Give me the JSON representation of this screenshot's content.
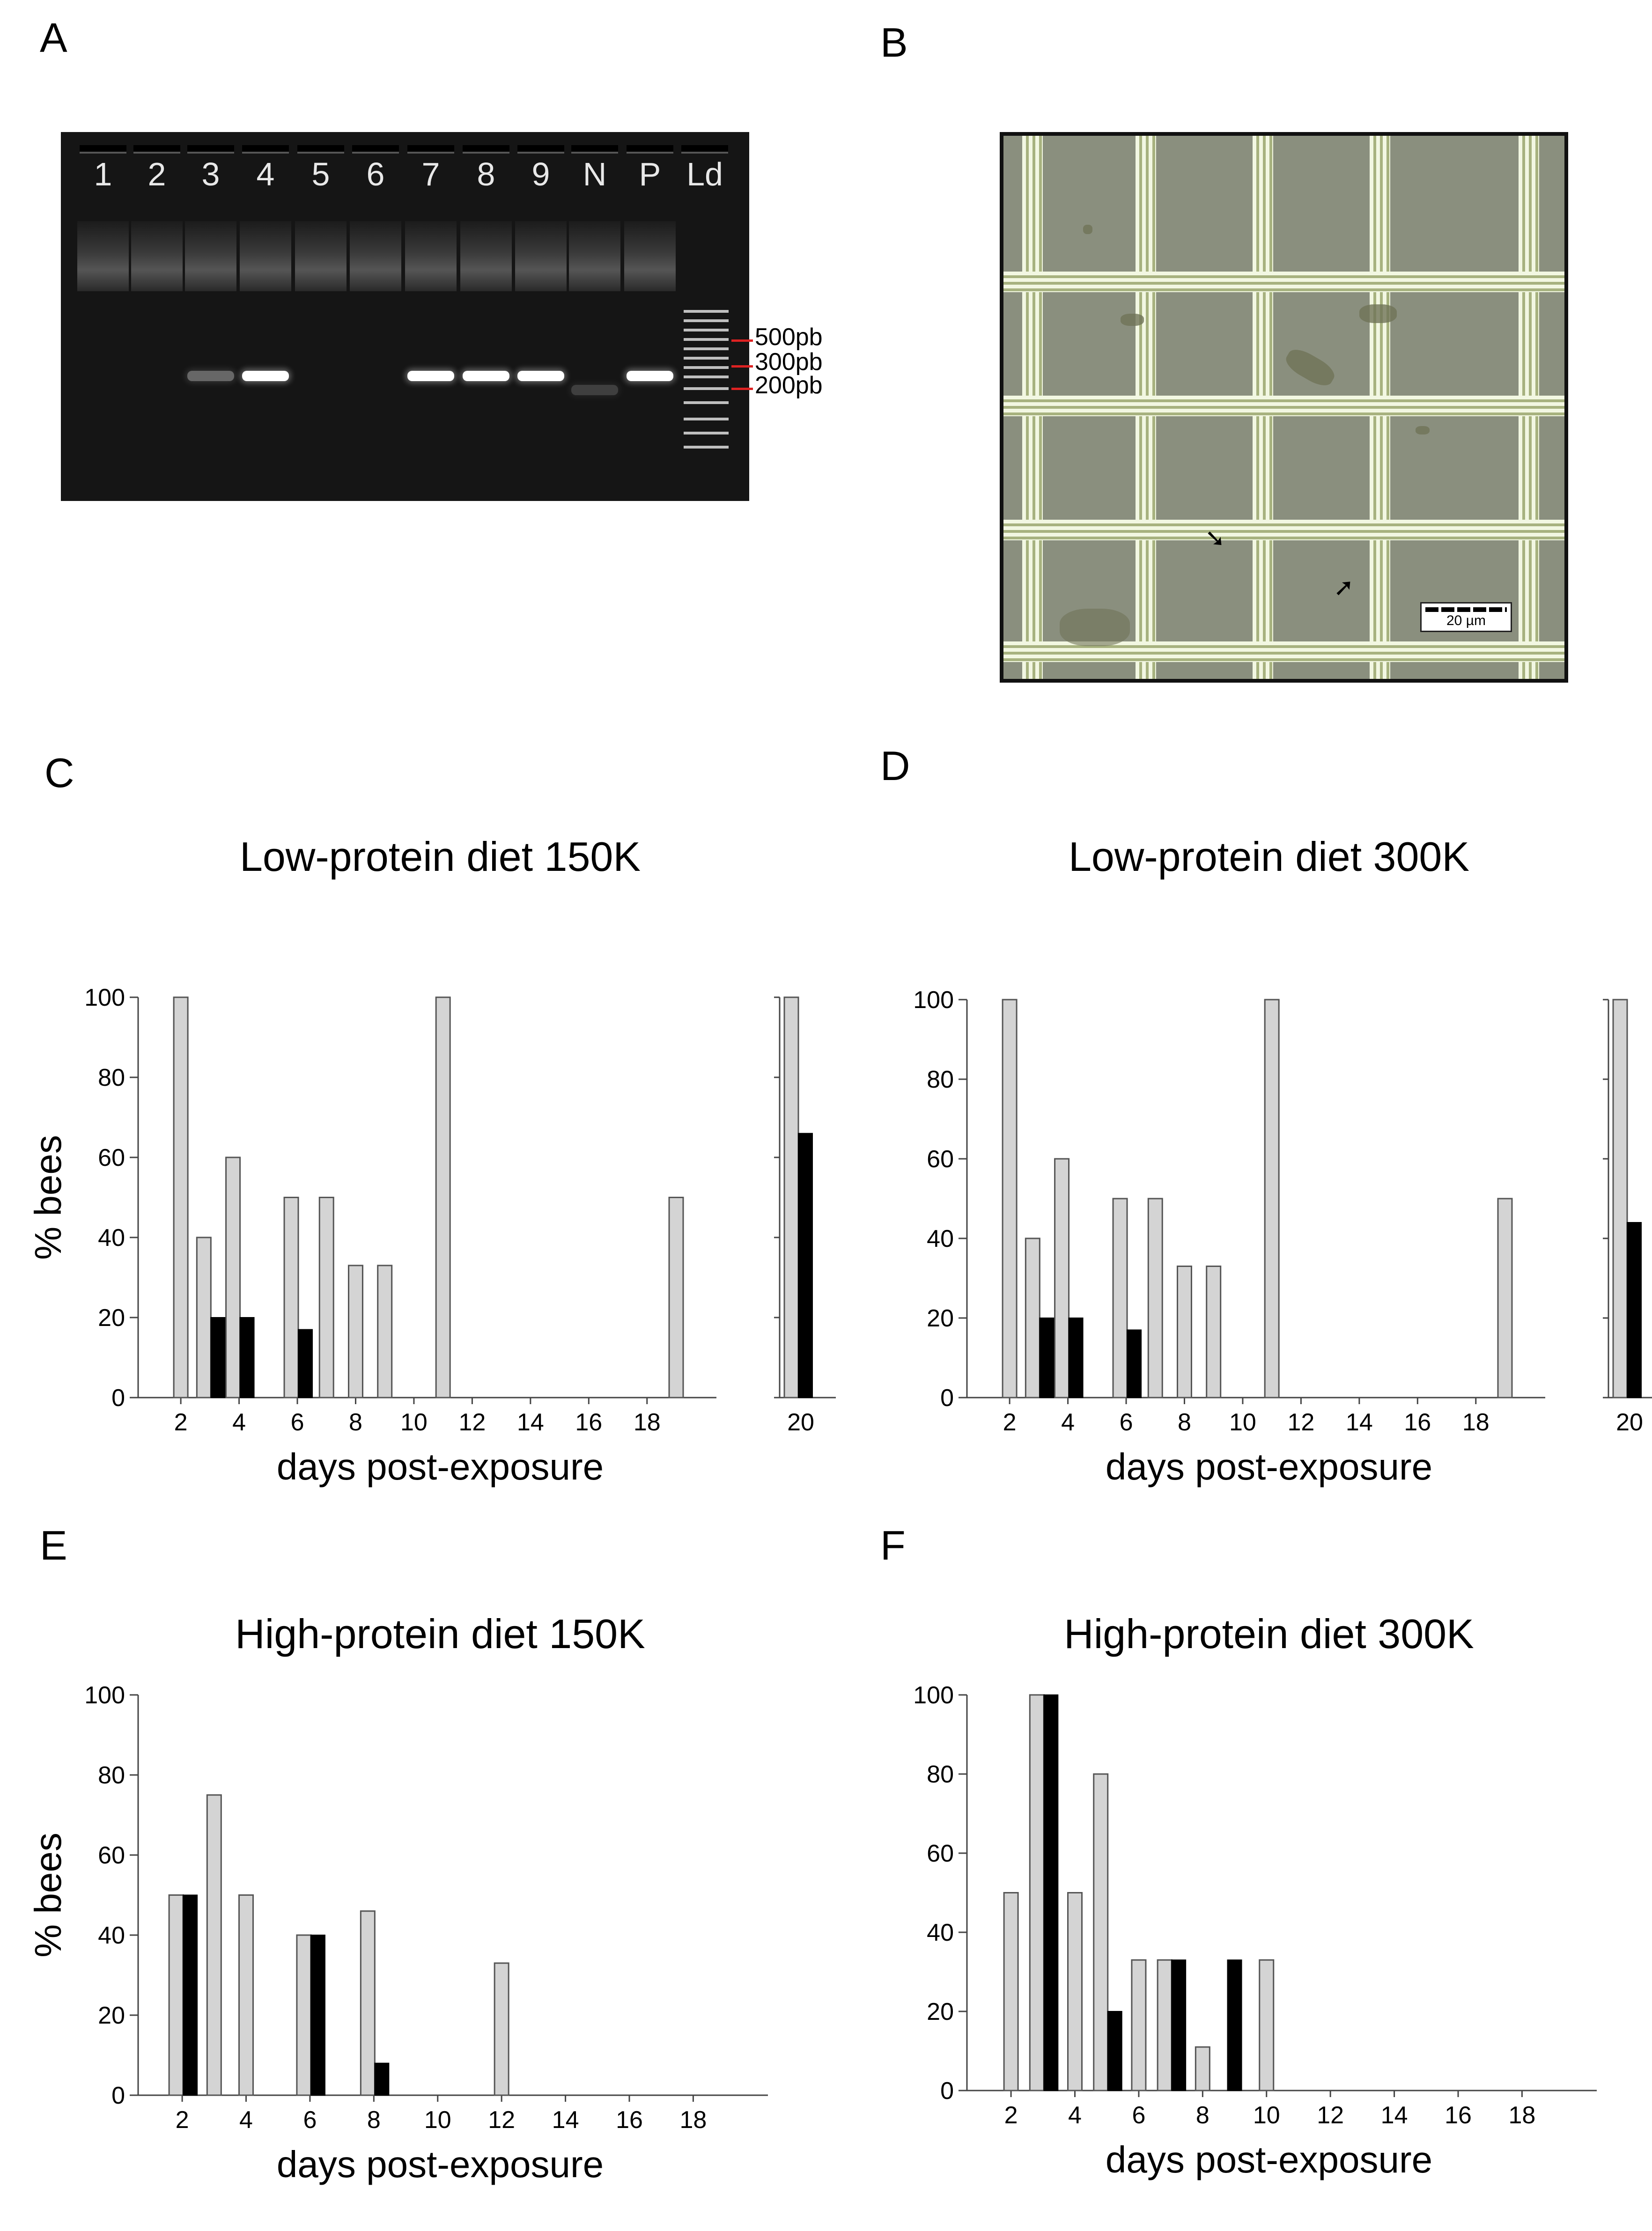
{
  "panel_labels": {
    "a": "A",
    "b": "B",
    "c": "C",
    "d": "D",
    "e": "E",
    "f": "F"
  },
  "gel": {
    "lanes": [
      "1",
      "2",
      "3",
      "4",
      "5",
      "6",
      "7",
      "8",
      "9",
      "N",
      "P",
      "Ld"
    ],
    "size_markers": [
      "500pb",
      "300pb",
      "200pb"
    ]
  },
  "micrograph": {
    "scale_label": "20 µm"
  },
  "colors": {
    "gray_bar": "#d4d4d4",
    "black_bar": "#000000",
    "bar_edge": "#555555"
  },
  "chart_data": [
    {
      "id": "C",
      "type": "bar",
      "title": "Low-protein diet 150K",
      "xlabel": "days post-exposure",
      "ylabel": "% bees",
      "ylim": [
        0,
        100
      ],
      "yticks": [
        "0",
        "20",
        "40",
        "60",
        "80",
        "100"
      ],
      "xticks": [
        "2",
        "4",
        "6",
        "8",
        "10",
        "12",
        "14",
        "16",
        "18"
      ],
      "break_tick": "20",
      "series": [
        {
          "name": "gray",
          "points": [
            [
              2,
              100
            ],
            [
              3,
              40
            ],
            [
              4,
              60
            ],
            [
              6,
              50
            ],
            [
              7,
              50
            ],
            [
              8,
              33
            ],
            [
              9,
              33
            ],
            [
              11,
              100
            ],
            [
              19,
              50
            ],
            [
              20,
              100
            ]
          ]
        },
        {
          "name": "black",
          "points": [
            [
              3,
              20
            ],
            [
              4,
              20
            ],
            [
              6,
              17
            ],
            [
              20,
              66
            ]
          ]
        }
      ]
    },
    {
      "id": "D",
      "type": "bar",
      "title": "Low-protein diet 300K",
      "xlabel": "days post-exposure",
      "ylabel": "",
      "ylim": [
        0,
        100
      ],
      "yticks": [
        "0",
        "20",
        "40",
        "60",
        "80",
        "100"
      ],
      "xticks": [
        "2",
        "4",
        "6",
        "8",
        "10",
        "12",
        "14",
        "16",
        "18"
      ],
      "break_tick": "20",
      "series": [
        {
          "name": "gray",
          "points": [
            [
              2,
              100
            ],
            [
              3,
              40
            ],
            [
              4,
              60
            ],
            [
              6,
              50
            ],
            [
              7,
              50
            ],
            [
              8,
              33
            ],
            [
              9,
              33
            ],
            [
              11,
              100
            ],
            [
              19,
              50
            ],
            [
              20,
              100
            ]
          ]
        },
        {
          "name": "black",
          "points": [
            [
              3,
              20
            ],
            [
              4,
              20
            ],
            [
              6,
              17
            ],
            [
              20,
              44
            ]
          ]
        }
      ]
    },
    {
      "id": "E",
      "type": "bar",
      "title": "High-protein diet 150K",
      "xlabel": "days post-exposure",
      "ylabel": "% bees",
      "ylim": [
        0,
        100
      ],
      "yticks": [
        "0",
        "20",
        "40",
        "60",
        "80",
        "100"
      ],
      "xticks": [
        "2",
        "4",
        "6",
        "8",
        "10",
        "12",
        "14",
        "16",
        "18"
      ],
      "series": [
        {
          "name": "gray",
          "points": [
            [
              2,
              50
            ],
            [
              3,
              75
            ],
            [
              4,
              50
            ],
            [
              6,
              40
            ],
            [
              8,
              46
            ],
            [
              12,
              33
            ]
          ]
        },
        {
          "name": "black",
          "points": [
            [
              2,
              50
            ],
            [
              6,
              40
            ],
            [
              8,
              8
            ]
          ]
        }
      ]
    },
    {
      "id": "F",
      "type": "bar",
      "title": "High-protein diet 300K",
      "xlabel": "days post-exposure",
      "ylabel": "",
      "ylim": [
        0,
        100
      ],
      "yticks": [
        "0",
        "20",
        "40",
        "60",
        "80",
        "100"
      ],
      "xticks": [
        "2",
        "4",
        "6",
        "8",
        "10",
        "12",
        "14",
        "16",
        "18"
      ],
      "series": [
        {
          "name": "gray",
          "points": [
            [
              2,
              50
            ],
            [
              3,
              100
            ],
            [
              4,
              50
            ],
            [
              5,
              80
            ],
            [
              6,
              33
            ],
            [
              7,
              33
            ],
            [
              8,
              11
            ],
            [
              10,
              33
            ]
          ]
        },
        {
          "name": "black",
          "points": [
            [
              3,
              100
            ],
            [
              5,
              20
            ],
            [
              7,
              33
            ],
            [
              9,
              33
            ]
          ]
        }
      ]
    }
  ]
}
